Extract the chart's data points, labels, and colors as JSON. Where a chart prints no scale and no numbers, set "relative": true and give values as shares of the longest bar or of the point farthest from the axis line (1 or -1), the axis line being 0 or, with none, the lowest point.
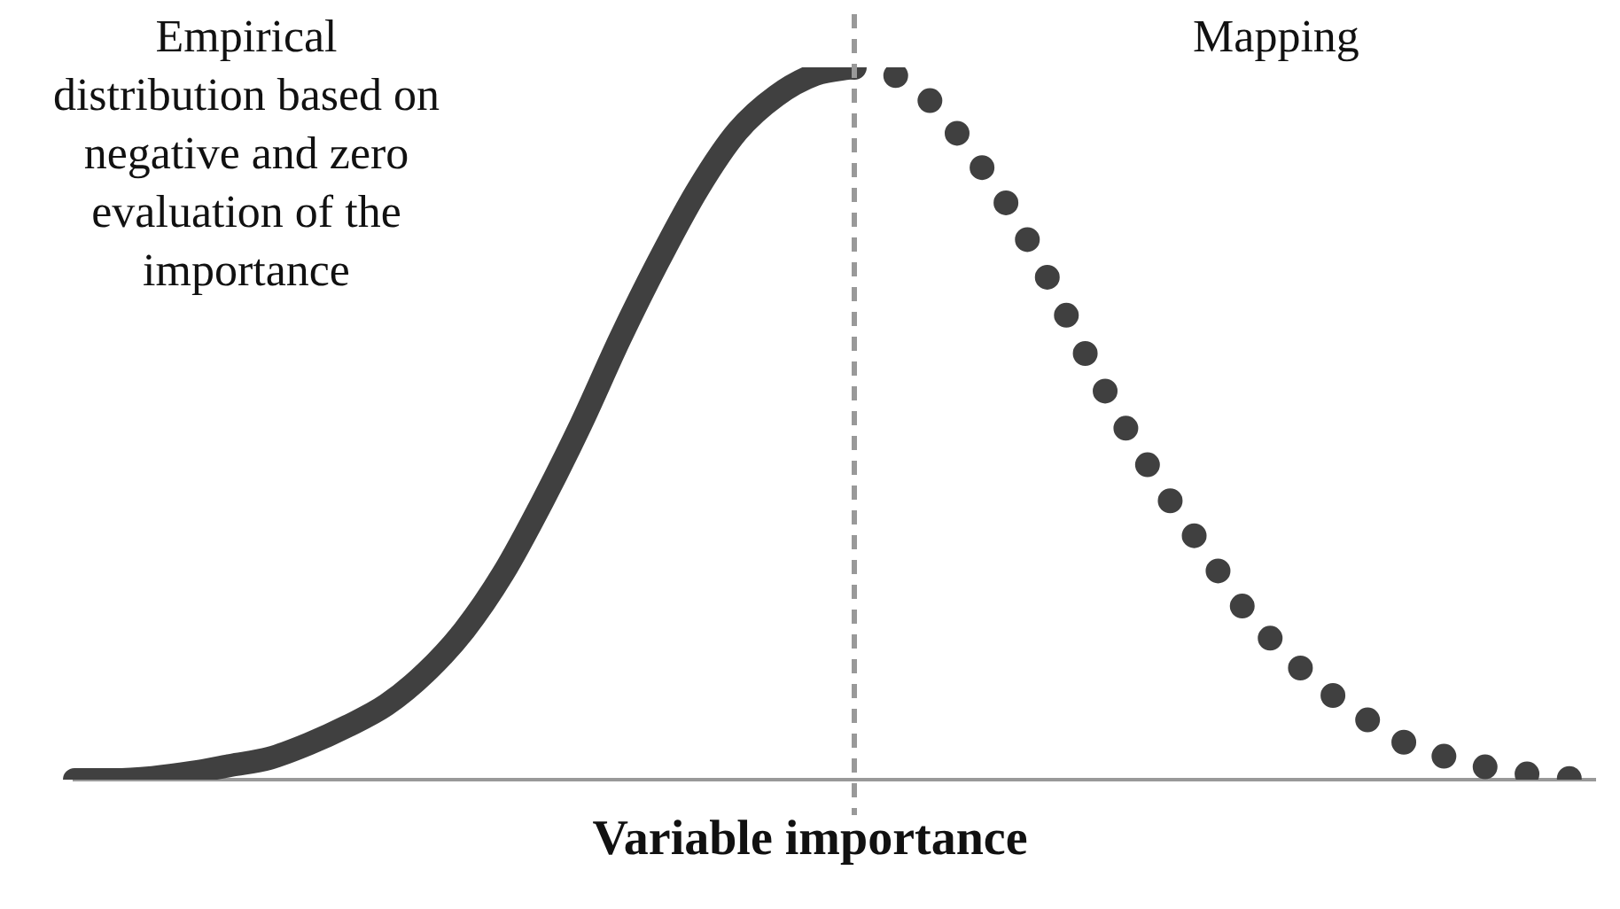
{
  "chart_data": {
    "type": "line",
    "relative": true,
    "xlabel": "Variable importance",
    "annotations": [
      "Empirical distribution based on negative and zero evaluation of the importance",
      "Mapping"
    ],
    "categories": [
      null,
      null,
      null,
      null,
      null,
      null,
      null,
      null,
      null,
      null,
      null,
      null,
      null,
      null,
      null,
      null,
      null,
      null,
      null,
      null,
      null,
      null,
      null,
      null,
      null,
      null,
      null,
      null,
      null,
      null,
      null,
      null,
      null,
      null,
      null,
      null,
      null,
      null,
      null,
      null
    ],
    "series": [
      {
        "color": "#404040",
        "line_style": "solid",
        "values": [
          0,
          0,
          0.003,
          0.01,
          0.02,
          0.03,
          0.05,
          0.075,
          0.105,
          0.15,
          0.21,
          0.29,
          0.39,
          0.5,
          0.62,
          0.73,
          0.83,
          0.91,
          0.96,
          0.99,
          1,
          null,
          null,
          null,
          null,
          null,
          null,
          null,
          null,
          null,
          null,
          null,
          null,
          null,
          null,
          null,
          null,
          null,
          null,
          null
        ]
      },
      {
        "color": "#404040",
        "line_style": "dotted",
        "values": [
          null,
          null,
          null,
          null,
          null,
          null,
          null,
          null,
          null,
          null,
          null,
          null,
          null,
          null,
          null,
          null,
          null,
          null,
          null,
          null,
          1,
          0.99,
          0.95,
          0.88,
          0.8,
          0.7,
          0.59,
          0.49,
          0.4,
          0.32,
          0.24,
          0.18,
          0.13,
          0.09,
          0.055,
          0.035,
          0.02,
          0.01,
          0.003,
          0
        ]
      }
    ],
    "grid": false,
    "legend": false,
    "marker": "none"
  }
}
